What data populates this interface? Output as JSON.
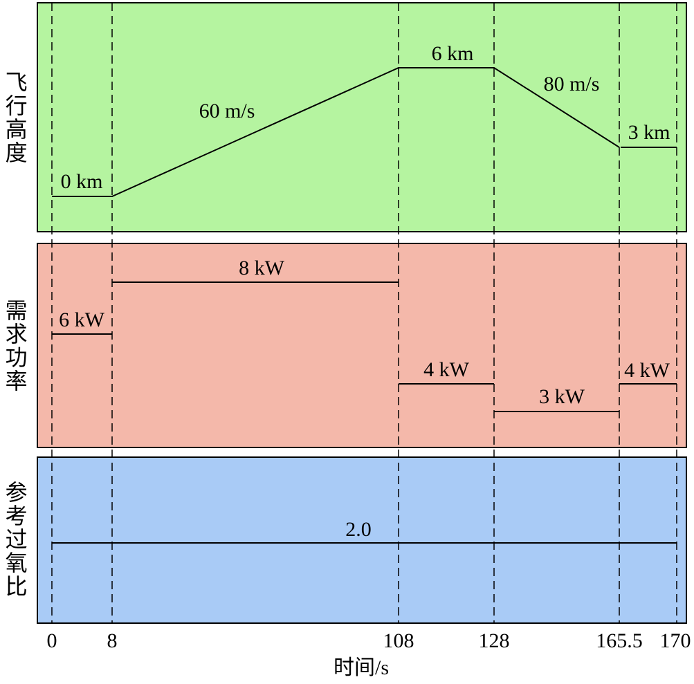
{
  "panels": [
    {
      "label": "飞行高度",
      "annotations": [
        "0 km",
        "60 m/s",
        "6 km",
        "80 m/s",
        "3 km"
      ]
    },
    {
      "label": "需求功率",
      "annotations": [
        "6 kW",
        "8 kW",
        "4 kW",
        "3 kW",
        "4 kW"
      ]
    },
    {
      "label": "参考过氧比",
      "annotations": [
        "2.0"
      ]
    }
  ],
  "x_axis": {
    "ticks": [
      "0",
      "8",
      "108",
      "128",
      "165.5",
      "170"
    ],
    "label": "时间/s"
  }
}
